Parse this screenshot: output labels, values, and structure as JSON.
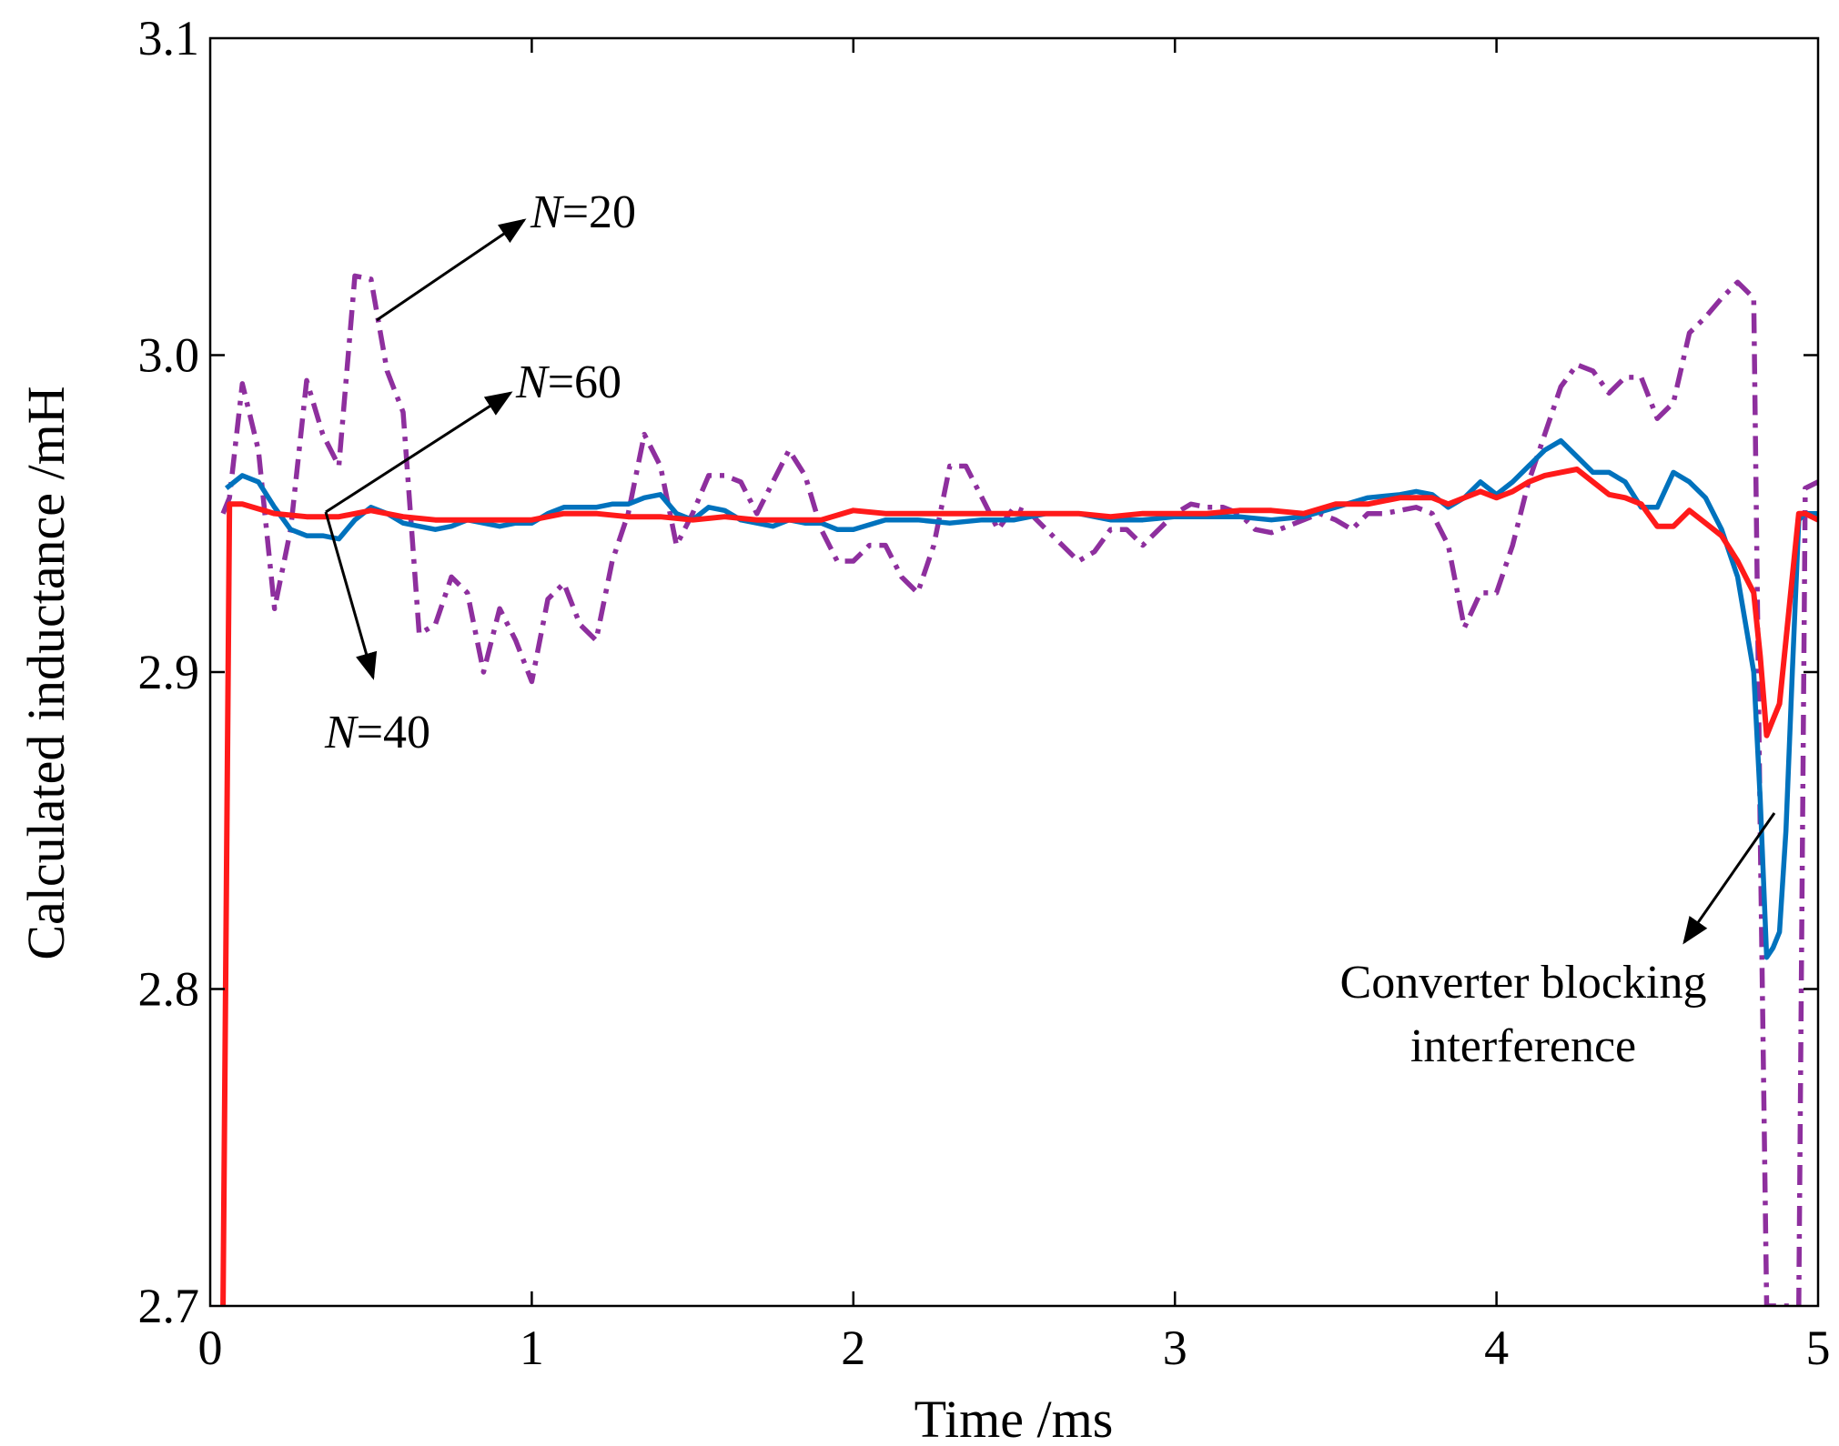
{
  "chart_data": {
    "type": "line",
    "title": "",
    "xlabel": "Time /ms",
    "ylabel": "Calculated inductance /mH",
    "xlim": [
      0,
      5
    ],
    "ylim": [
      2.7,
      3.1
    ],
    "xticks": [
      0,
      1,
      2,
      3,
      4,
      5
    ],
    "yticks": [
      2.7,
      2.8,
      2.9,
      3.0,
      3.1
    ],
    "xtick_labels": [
      "0",
      "1",
      "2",
      "3",
      "4",
      "5"
    ],
    "ytick_labels": [
      "2.7",
      "2.8",
      "2.9",
      "3.0",
      "3.1"
    ],
    "grid": false,
    "series": [
      {
        "name": "N=20",
        "color": "#8e2f9e",
        "style": "dash-dot",
        "x": [
          0.04,
          0.06,
          0.1,
          0.15,
          0.2,
          0.25,
          0.3,
          0.35,
          0.4,
          0.45,
          0.5,
          0.55,
          0.6,
          0.65,
          0.7,
          0.75,
          0.8,
          0.85,
          0.9,
          0.95,
          1.0,
          1.05,
          1.1,
          1.15,
          1.2,
          1.25,
          1.3,
          1.35,
          1.4,
          1.45,
          1.5,
          1.55,
          1.6,
          1.65,
          1.7,
          1.75,
          1.8,
          1.85,
          1.9,
          1.95,
          2.0,
          2.05,
          2.1,
          2.15,
          2.2,
          2.25,
          2.3,
          2.35,
          2.4,
          2.45,
          2.5,
          2.55,
          2.6,
          2.65,
          2.7,
          2.75,
          2.8,
          2.85,
          2.9,
          2.95,
          3.0,
          3.05,
          3.1,
          3.15,
          3.2,
          3.25,
          3.3,
          3.35,
          3.4,
          3.45,
          3.5,
          3.55,
          3.6,
          3.65,
          3.7,
          3.75,
          3.8,
          3.85,
          3.9,
          3.95,
          4.0,
          4.05,
          4.1,
          4.15,
          4.2,
          4.25,
          4.3,
          4.35,
          4.4,
          4.45,
          4.5,
          4.55,
          4.6,
          4.65,
          4.7,
          4.75,
          4.78,
          4.8,
          4.82,
          4.84,
          4.86,
          4.88,
          4.9,
          4.92,
          4.94,
          4.96,
          5.0
        ],
        "y": [
          2.95,
          2.955,
          2.991,
          2.97,
          2.92,
          2.945,
          2.992,
          2.975,
          2.965,
          3.025,
          3.024,
          2.995,
          2.982,
          2.912,
          2.915,
          2.93,
          2.925,
          2.9,
          2.92,
          2.91,
          2.897,
          2.923,
          2.928,
          2.915,
          2.91,
          2.935,
          2.95,
          2.975,
          2.965,
          2.94,
          2.95,
          2.962,
          2.962,
          2.96,
          2.95,
          2.96,
          2.97,
          2.962,
          2.945,
          2.935,
          2.935,
          2.94,
          2.94,
          2.93,
          2.925,
          2.94,
          2.965,
          2.965,
          2.955,
          2.945,
          2.952,
          2.95,
          2.945,
          2.94,
          2.935,
          2.938,
          2.945,
          2.945,
          2.94,
          2.945,
          2.95,
          2.953,
          2.952,
          2.952,
          2.95,
          2.945,
          2.944,
          2.946,
          2.948,
          2.95,
          2.948,
          2.945,
          2.95,
          2.95,
          2.951,
          2.952,
          2.95,
          2.94,
          2.914,
          2.925,
          2.925,
          2.94,
          2.96,
          2.975,
          2.99,
          2.997,
          2.995,
          2.988,
          2.993,
          2.993,
          2.98,
          2.985,
          3.007,
          3.012,
          3.018,
          3.023,
          3.02,
          3.018,
          2.85,
          2.7,
          2.7,
          2.7,
          2.7,
          2.7,
          2.7,
          2.958,
          2.96
        ]
      },
      {
        "name": "N=40",
        "color": "#0072bd",
        "style": "solid",
        "x": [
          0.05,
          0.1,
          0.15,
          0.2,
          0.25,
          0.3,
          0.35,
          0.4,
          0.45,
          0.5,
          0.55,
          0.6,
          0.65,
          0.7,
          0.75,
          0.8,
          0.85,
          0.9,
          0.95,
          1.0,
          1.05,
          1.1,
          1.15,
          1.2,
          1.25,
          1.3,
          1.35,
          1.4,
          1.45,
          1.5,
          1.55,
          1.6,
          1.65,
          1.7,
          1.75,
          1.8,
          1.85,
          1.9,
          1.95,
          2.0,
          2.1,
          2.2,
          2.3,
          2.4,
          2.5,
          2.6,
          2.7,
          2.8,
          2.9,
          3.0,
          3.1,
          3.2,
          3.3,
          3.4,
          3.5,
          3.6,
          3.7,
          3.75,
          3.8,
          3.85,
          3.9,
          3.95,
          4.0,
          4.05,
          4.1,
          4.15,
          4.2,
          4.25,
          4.3,
          4.35,
          4.4,
          4.45,
          4.5,
          4.55,
          4.6,
          4.65,
          4.7,
          4.75,
          4.8,
          4.82,
          4.84,
          4.86,
          4.88,
          4.9,
          4.92,
          4.94,
          4.96,
          5.0
        ],
        "y": [
          2.958,
          2.962,
          2.96,
          2.952,
          2.945,
          2.943,
          2.943,
          2.942,
          2.948,
          2.952,
          2.95,
          2.947,
          2.946,
          2.945,
          2.946,
          2.948,
          2.947,
          2.946,
          2.947,
          2.947,
          2.95,
          2.952,
          2.952,
          2.952,
          2.953,
          2.953,
          2.955,
          2.956,
          2.95,
          2.948,
          2.952,
          2.951,
          2.948,
          2.947,
          2.946,
          2.948,
          2.947,
          2.947,
          2.945,
          2.945,
          2.948,
          2.948,
          2.947,
          2.948,
          2.948,
          2.95,
          2.95,
          2.948,
          2.948,
          2.949,
          2.949,
          2.949,
          2.948,
          2.949,
          2.952,
          2.955,
          2.956,
          2.957,
          2.956,
          2.952,
          2.955,
          2.96,
          2.956,
          2.96,
          2.965,
          2.97,
          2.973,
          2.968,
          2.963,
          2.963,
          2.96,
          2.952,
          2.952,
          2.963,
          2.96,
          2.955,
          2.945,
          2.93,
          2.9,
          2.86,
          2.81,
          2.813,
          2.818,
          2.85,
          2.9,
          2.948,
          2.95,
          2.95
        ]
      },
      {
        "name": "N=60",
        "color": "#ff1a1a",
        "style": "solid",
        "x": [
          0.04,
          0.06,
          0.1,
          0.2,
          0.3,
          0.4,
          0.5,
          0.6,
          0.7,
          0.8,
          0.9,
          1.0,
          1.1,
          1.2,
          1.3,
          1.4,
          1.5,
          1.6,
          1.7,
          1.8,
          1.9,
          2.0,
          2.1,
          2.2,
          2.3,
          2.4,
          2.5,
          2.6,
          2.7,
          2.8,
          2.9,
          3.0,
          3.1,
          3.2,
          3.3,
          3.4,
          3.5,
          3.6,
          3.7,
          3.8,
          3.85,
          3.9,
          3.95,
          4.0,
          4.05,
          4.1,
          4.15,
          4.2,
          4.25,
          4.3,
          4.35,
          4.4,
          4.45,
          4.5,
          4.55,
          4.6,
          4.65,
          4.7,
          4.75,
          4.8,
          4.82,
          4.84,
          4.86,
          4.88,
          4.9,
          4.92,
          4.94,
          4.96,
          5.0
        ],
        "y": [
          2.7,
          2.953,
          2.953,
          2.95,
          2.949,
          2.949,
          2.951,
          2.949,
          2.948,
          2.948,
          2.948,
          2.948,
          2.95,
          2.95,
          2.949,
          2.949,
          2.948,
          2.949,
          2.948,
          2.948,
          2.948,
          2.951,
          2.95,
          2.95,
          2.95,
          2.95,
          2.95,
          2.95,
          2.95,
          2.949,
          2.95,
          2.95,
          2.95,
          2.951,
          2.951,
          2.95,
          2.953,
          2.953,
          2.955,
          2.955,
          2.953,
          2.955,
          2.957,
          2.955,
          2.957,
          2.96,
          2.962,
          2.963,
          2.964,
          2.96,
          2.956,
          2.955,
          2.953,
          2.946,
          2.946,
          2.951,
          2.947,
          2.943,
          2.935,
          2.925,
          2.905,
          2.88,
          2.885,
          2.89,
          2.91,
          2.93,
          2.95,
          2.95,
          2.948
        ]
      }
    ],
    "annotations": [
      {
        "var": "N",
        "rest": "=20"
      },
      {
        "var": "N",
        "rest": "=60"
      },
      {
        "var": "N",
        "rest": "=40"
      },
      {
        "lines": [
          "Converter blocking",
          "interference"
        ]
      }
    ]
  }
}
